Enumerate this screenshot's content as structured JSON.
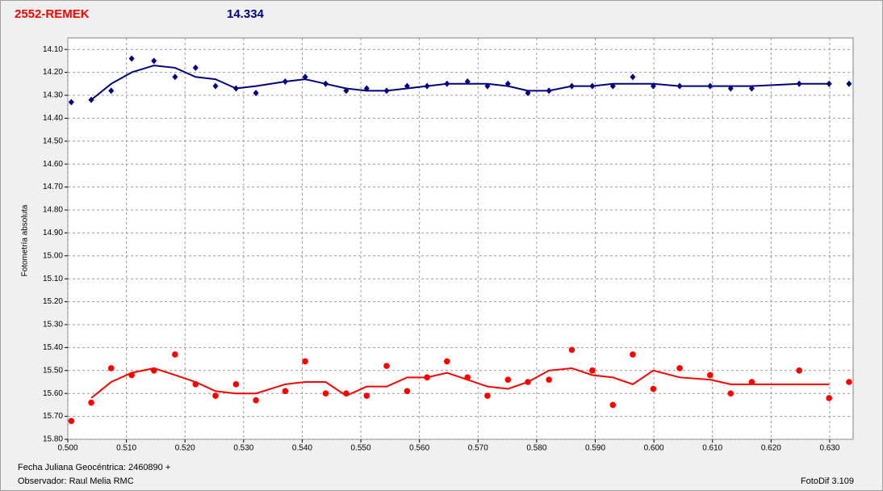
{
  "chart_data": {
    "type": "scatter",
    "title": "2552-REMEK",
    "subtitle": "14.334",
    "y_label": "Fotometría absoluta",
    "x_label": "Fecha Juliana Geocéntrica: 2460890 +",
    "observer": "Observador: Raul Melia RMC",
    "software": "FotoDif 3.109",
    "xlim": [
      0.5,
      0.634
    ],
    "ylim": [
      15.8,
      14.05
    ],
    "grid": true,
    "xticks": [
      {
        "value": 0.5,
        "label": "0.500"
      },
      {
        "value": 0.51,
        "label": "0.510"
      },
      {
        "value": 0.52,
        "label": "0.520"
      },
      {
        "value": 0.53,
        "label": "0.530"
      },
      {
        "value": 0.54,
        "label": "0.540"
      },
      {
        "value": 0.55,
        "label": "0.550"
      },
      {
        "value": 0.56,
        "label": "0.560"
      },
      {
        "value": 0.57,
        "label": "0.570"
      },
      {
        "value": 0.58,
        "label": "0.580"
      },
      {
        "value": 0.59,
        "label": "0.590"
      },
      {
        "value": 0.6,
        "label": "0.600"
      },
      {
        "value": 0.61,
        "label": "0.610"
      },
      {
        "value": 0.62,
        "label": "0.620"
      },
      {
        "value": 0.63,
        "label": "0.630"
      }
    ],
    "yticks": [
      {
        "value": 14.1,
        "label": "14.10"
      },
      {
        "value": 14.2,
        "label": "14.20"
      },
      {
        "value": 14.3,
        "label": "14.30"
      },
      {
        "value": 14.4,
        "label": "14.40"
      },
      {
        "value": 14.5,
        "label": "14.50"
      },
      {
        "value": 14.6,
        "label": "14.60"
      },
      {
        "value": 14.7,
        "label": "14.70"
      },
      {
        "value": 14.8,
        "label": "14.80"
      },
      {
        "value": 14.9,
        "label": "14.90"
      },
      {
        "value": 15.0,
        "label": "15.00"
      },
      {
        "value": 15.1,
        "label": "15.10"
      },
      {
        "value": 15.2,
        "label": "15.20"
      },
      {
        "value": 15.3,
        "label": "15.30"
      },
      {
        "value": 15.4,
        "label": "15.40"
      },
      {
        "value": 15.5,
        "label": "15.50"
      },
      {
        "value": 15.6,
        "label": "15.60"
      },
      {
        "value": 15.7,
        "label": "15.70"
      },
      {
        "value": 15.8,
        "label": "15.80"
      }
    ],
    "series": [
      {
        "style": "markers",
        "marker": "diamond",
        "color": "#000080",
        "x": [
          0.5006,
          0.504,
          0.5074,
          0.5109,
          0.5147,
          0.5183,
          0.5218,
          0.5252,
          0.5287,
          0.5321,
          0.5371,
          0.5405,
          0.544,
          0.5475,
          0.551,
          0.5544,
          0.5579,
          0.5613,
          0.5647,
          0.5682,
          0.5716,
          0.5751,
          0.5785,
          0.5821,
          0.586,
          0.5895,
          0.593,
          0.5964,
          0.5999,
          0.6044,
          0.6096,
          0.6131,
          0.6167,
          0.6248,
          0.6299,
          0.6333
        ],
        "values": [
          14.33,
          14.32,
          14.28,
          14.14,
          14.15,
          14.22,
          14.18,
          14.26,
          14.27,
          14.29,
          14.24,
          14.22,
          14.25,
          14.28,
          14.27,
          14.28,
          14.26,
          14.26,
          14.25,
          14.24,
          14.26,
          14.25,
          14.29,
          14.28,
          14.26,
          14.26,
          14.26,
          14.22,
          14.26,
          14.26,
          14.26,
          14.27,
          14.27,
          14.25,
          14.25,
          14.25
        ]
      },
      {
        "style": "line",
        "color": "#000080",
        "x": [
          0.504,
          0.5074,
          0.5109,
          0.5147,
          0.5183,
          0.5218,
          0.5252,
          0.5287,
          0.5321,
          0.5371,
          0.5405,
          0.544,
          0.5475,
          0.551,
          0.5544,
          0.5579,
          0.5613,
          0.5647,
          0.5682,
          0.5716,
          0.5751,
          0.5785,
          0.5821,
          0.586,
          0.5895,
          0.593,
          0.5964,
          0.5999,
          0.6044,
          0.6096,
          0.6131,
          0.6167,
          0.6248,
          0.6299
        ],
        "values": [
          14.32,
          14.25,
          14.2,
          14.17,
          14.18,
          14.22,
          14.23,
          14.27,
          14.26,
          14.24,
          14.23,
          14.25,
          14.27,
          14.28,
          14.28,
          14.27,
          14.26,
          14.25,
          14.25,
          14.25,
          14.26,
          14.28,
          14.28,
          14.26,
          14.26,
          14.25,
          14.25,
          14.25,
          14.26,
          14.26,
          14.26,
          14.26,
          14.25,
          14.25
        ]
      },
      {
        "style": "markers",
        "marker": "circle",
        "color": "#ff0000",
        "x": [
          0.5006,
          0.504,
          0.5074,
          0.5109,
          0.5147,
          0.5183,
          0.5218,
          0.5252,
          0.5287,
          0.5321,
          0.5371,
          0.5405,
          0.544,
          0.5475,
          0.551,
          0.5544,
          0.5579,
          0.5613,
          0.5647,
          0.5682,
          0.5716,
          0.5751,
          0.5785,
          0.5821,
          0.586,
          0.5895,
          0.593,
          0.5964,
          0.5999,
          0.6044,
          0.6096,
          0.6131,
          0.6167,
          0.6248,
          0.6299,
          0.6333
        ],
        "values": [
          15.72,
          15.64,
          15.49,
          15.52,
          15.5,
          15.43,
          15.56,
          15.61,
          15.56,
          15.63,
          15.59,
          15.46,
          15.6,
          15.6,
          15.61,
          15.48,
          15.59,
          15.53,
          15.46,
          15.53,
          15.61,
          15.54,
          15.55,
          15.54,
          15.41,
          15.5,
          15.65,
          15.43,
          15.58,
          15.49,
          15.52,
          15.6,
          15.55,
          15.5,
          15.62,
          15.55
        ]
      },
      {
        "style": "line",
        "color": "#ff0000",
        "x": [
          0.504,
          0.5074,
          0.5109,
          0.5147,
          0.5183,
          0.5218,
          0.5252,
          0.5287,
          0.5321,
          0.5371,
          0.5405,
          0.544,
          0.5475,
          0.551,
          0.5544,
          0.5579,
          0.5613,
          0.5647,
          0.5682,
          0.5716,
          0.5751,
          0.5785,
          0.5821,
          0.586,
          0.5895,
          0.593,
          0.5964,
          0.5999,
          0.6044,
          0.6096,
          0.6131,
          0.6167,
          0.6248,
          0.6299
        ],
        "values": [
          15.62,
          15.55,
          15.51,
          15.49,
          15.52,
          15.55,
          15.59,
          15.6,
          15.6,
          15.56,
          15.55,
          15.55,
          15.61,
          15.57,
          15.57,
          15.53,
          15.53,
          15.51,
          15.54,
          15.57,
          15.58,
          15.55,
          15.5,
          15.49,
          15.52,
          15.53,
          15.56,
          15.5,
          15.53,
          15.54,
          15.56,
          15.56,
          15.56,
          15.56
        ]
      }
    ]
  }
}
